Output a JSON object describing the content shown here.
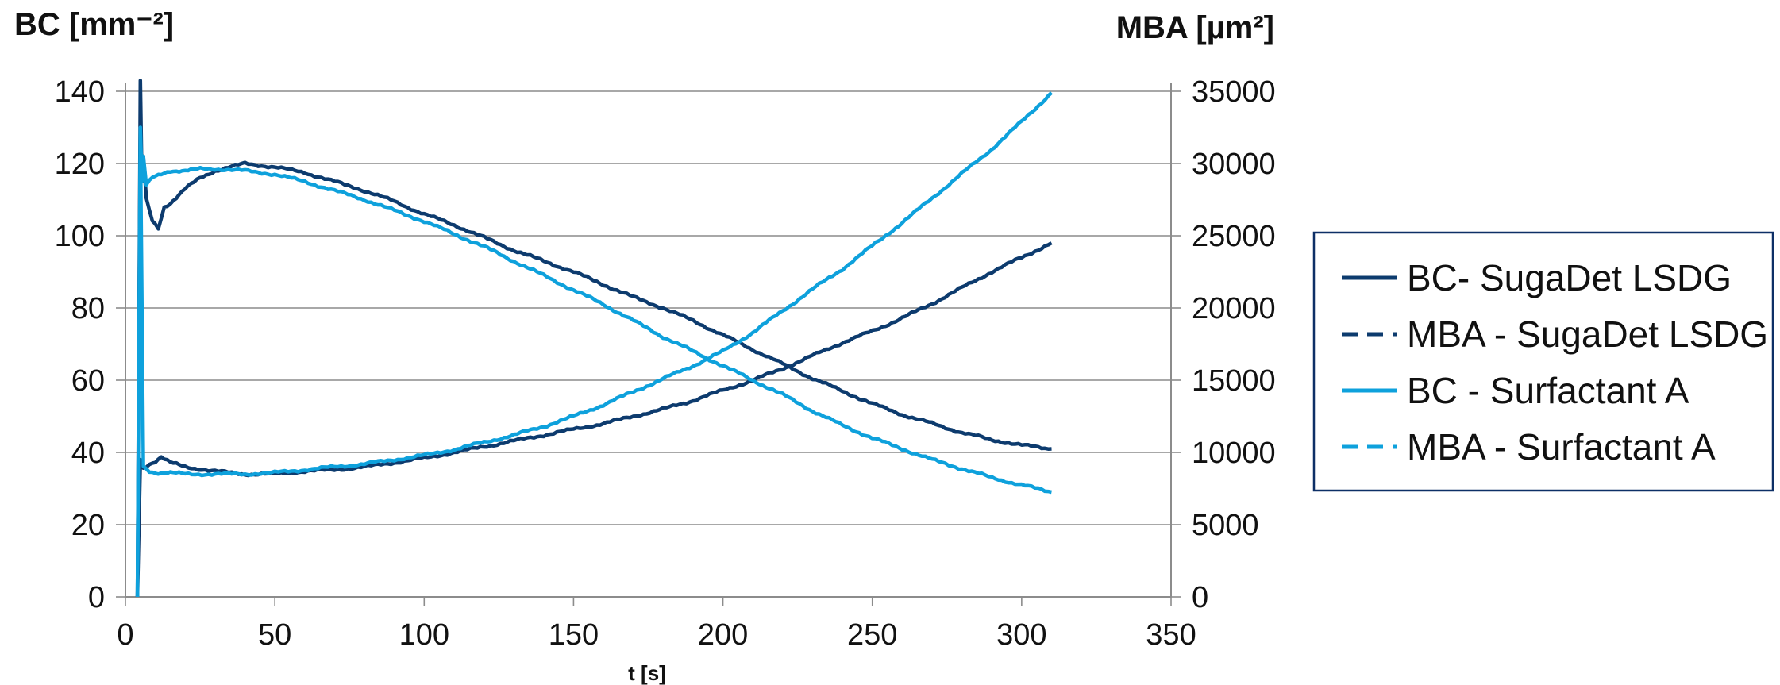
{
  "colors": {
    "dark_series": "#0d3b6e",
    "light_series": "#0ea1dc",
    "gridline": "#8c8c8c",
    "axis": "#8c8c8c",
    "legend_border": "#0d2f66"
  },
  "chart_data": {
    "type": "line",
    "xlabel": "t [s]",
    "ylabel_left": "BC [mm⁻²]",
    "ylabel_right": "MBA [µm²]",
    "xlim": [
      0,
      350
    ],
    "ylim_left": [
      0,
      140
    ],
    "ylim_right": [
      0,
      35000
    ],
    "x_ticks": [
      "0",
      "50",
      "100",
      "150",
      "200",
      "250",
      "300",
      "350"
    ],
    "y_left_ticks": [
      "0",
      "20",
      "40",
      "60",
      "80",
      "100",
      "120",
      "140"
    ],
    "y_right_ticks": [
      "0",
      "5000",
      "10000",
      "15000",
      "20000",
      "25000",
      "30000",
      "35000"
    ],
    "grid": true,
    "legend_position": "right",
    "series": [
      {
        "name": "BC- SugaDet LSDG",
        "axis": "left",
        "style": "solid",
        "color": "dark_series",
        "x": [
          4,
          5,
          5.5,
          6,
          7,
          9,
          11,
          13,
          15,
          20,
          25,
          30,
          40,
          50,
          60,
          70,
          80,
          90,
          100,
          110,
          120,
          130,
          140,
          150,
          160,
          170,
          180,
          190,
          200,
          210,
          220,
          230,
          240,
          250,
          260,
          270,
          280,
          290,
          300,
          310
        ],
        "y": [
          0,
          143,
          115,
          122,
          110,
          104,
          102,
          108,
          109,
          113,
          116,
          118,
          120,
          119,
          117.5,
          115,
          112.5,
          109.5,
          106,
          103,
          99.5,
          96,
          93,
          90,
          86.5,
          83,
          80,
          76.5,
          72.5,
          68.5,
          64.5,
          60.5,
          57,
          53.5,
          50.5,
          48,
          45.5,
          43.5,
          42,
          41
        ]
      },
      {
        "name": "MBA - SugaDet LSDG",
        "axis": "right",
        "style": "dashed",
        "color": "dark_series",
        "x": [
          4,
          5,
          6,
          8,
          10,
          12,
          15,
          20,
          30,
          40,
          50,
          60,
          70,
          80,
          90,
          100,
          110,
          120,
          130,
          140,
          150,
          160,
          170,
          180,
          190,
          200,
          210,
          220,
          230,
          240,
          250,
          260,
          270,
          280,
          290,
          300,
          310
        ],
        "y": [
          0,
          9500,
          8900,
          9200,
          9400,
          9700,
          9300,
          9000,
          8700,
          8500,
          8500,
          8700,
          8800,
          9000,
          9300,
          9600,
          10000,
          10400,
          10800,
          11200,
          11600,
          12000,
          12500,
          13000,
          13600,
          14300,
          15000,
          15800,
          16700,
          17600,
          18400,
          19300,
          20300,
          21400,
          22500,
          23500,
          24500
        ]
      },
      {
        "name": "BC - Surfactant A",
        "axis": "left",
        "style": "solid",
        "color": "light_series",
        "x": [
          4,
          5,
          5.5,
          6,
          7,
          9,
          12,
          15,
          20,
          25,
          30,
          40,
          50,
          60,
          70,
          80,
          90,
          100,
          110,
          120,
          130,
          140,
          150,
          160,
          170,
          180,
          190,
          200,
          210,
          220,
          230,
          240,
          250,
          260,
          270,
          280,
          290,
          300,
          310
        ],
        "y": [
          0,
          130,
          115,
          122,
          114,
          116,
          117,
          118,
          118,
          118.5,
          118.5,
          118,
          117,
          115,
          112.5,
          110,
          107,
          104,
          100.5,
          97,
          93,
          89,
          85,
          81,
          76.5,
          72,
          68,
          64,
          60,
          56,
          51.5,
          47.5,
          44,
          41,
          38,
          35.5,
          33,
          31,
          29
        ]
      },
      {
        "name": "MBA - Surfactant A",
        "axis": "right",
        "style": "dashed",
        "color": "light_series",
        "x": [
          4,
          5,
          6,
          8,
          10,
          12,
          15,
          20,
          30,
          40,
          50,
          60,
          70,
          80,
          90,
          100,
          110,
          120,
          130,
          140,
          150,
          160,
          170,
          180,
          190,
          200,
          210,
          220,
          230,
          240,
          250,
          260,
          270,
          280,
          290,
          300,
          310
        ],
        "y": [
          0,
          32000,
          9000,
          8700,
          8600,
          8600,
          8600,
          8500,
          8500,
          8500,
          8600,
          8800,
          9000,
          9200,
          9500,
          9800,
          10200,
          10700,
          11200,
          11800,
          12500,
          13300,
          14200,
          15100,
          16000,
          17000,
          18300,
          19800,
          21300,
          22700,
          24300,
          25900,
          27600,
          29300,
          31000,
          32900,
          34900
        ]
      }
    ]
  }
}
